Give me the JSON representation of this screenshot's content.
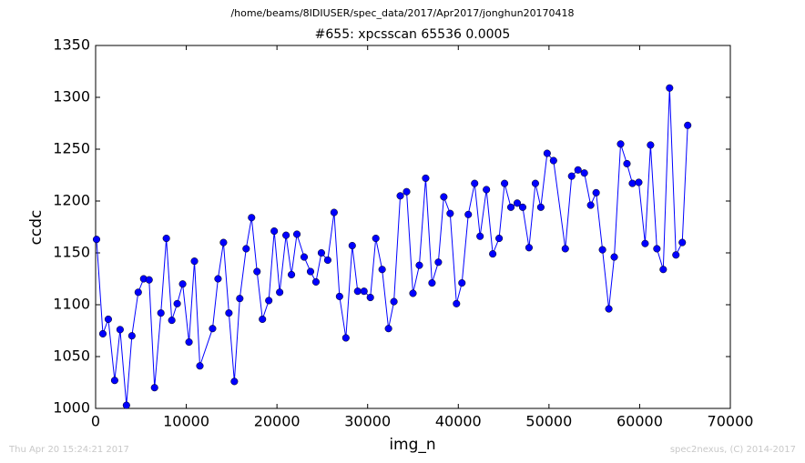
{
  "chart_data": {
    "type": "line",
    "suptitle": "/home/beams/8IDIUSER/spec_data/2017/Apr2017/jonghun20170418",
    "title": "#655: xpcsscan 65536 0.0005",
    "xlabel": "img_n",
    "ylabel": "ccdc",
    "footer_left": "Thu Apr 20 15:24:21 2017",
    "footer_right": "spec2nexus, (C) 2014-2017",
    "xlim": [
      0,
      70000
    ],
    "xticks": [
      0,
      10000,
      20000,
      30000,
      40000,
      50000,
      60000,
      70000
    ],
    "ylim": [
      1000,
      1350
    ],
    "yticks": [
      1000,
      1050,
      1100,
      1150,
      1200,
      1250,
      1300,
      1350
    ],
    "series": [
      {
        "color": "#0000ff",
        "x": [
          100,
          800,
          1400,
          2100,
          2700,
          3400,
          4000,
          4700,
          5300,
          5900,
          6500,
          7200,
          7800,
          8400,
          9000,
          9600,
          10300,
          10900,
          11500,
          12900,
          13500,
          14100,
          14700,
          15300,
          15900,
          16600,
          17200,
          17800,
          18400,
          19100,
          19700,
          20300,
          21000,
          21600,
          22200,
          23000,
          23700,
          24300,
          24900,
          25600,
          26300,
          26900,
          27600,
          28300,
          28900,
          29600,
          30300,
          30900,
          31600,
          32300,
          32900,
          33600,
          34300,
          35000,
          35700,
          36400,
          37100,
          37800,
          38400,
          39100,
          39800,
          40400,
          41100,
          41800,
          42400,
          43100,
          43800,
          44500,
          45100,
          45800,
          46500,
          47100,
          47800,
          48500,
          49100,
          49800,
          50500,
          51800,
          52500,
          53200,
          53900,
          54600,
          55200,
          55900,
          56600,
          57200,
          57900,
          58600,
          59200,
          59900,
          60600,
          61200,
          61900,
          62600,
          63300,
          64000,
          64700,
          65300
        ],
        "values": [
          1163,
          1072,
          1086,
          1027,
          1076,
          1003,
          1070,
          1112,
          1125,
          1124,
          1020,
          1092,
          1164,
          1085,
          1101,
          1120,
          1064,
          1142,
          1041,
          1077,
          1125,
          1160,
          1092,
          1026,
          1106,
          1154,
          1184,
          1132,
          1086,
          1104,
          1171,
          1112,
          1167,
          1129,
          1168,
          1146,
          1132,
          1122,
          1150,
          1143,
          1189,
          1108,
          1068,
          1157,
          1113,
          1113,
          1107,
          1164,
          1134,
          1077,
          1103,
          1205,
          1209,
          1111,
          1138,
          1222,
          1121,
          1141,
          1204,
          1188,
          1101,
          1121,
          1187,
          1217,
          1166,
          1211,
          1149,
          1164,
          1217,
          1194,
          1198,
          1194,
          1155,
          1217,
          1194,
          1246,
          1239,
          1154,
          1224,
          1230,
          1227,
          1196,
          1208,
          1153,
          1096,
          1146,
          1255,
          1236,
          1217,
          1218,
          1159,
          1254,
          1154,
          1134,
          1309,
          1148,
          1160,
          1273
        ]
      }
    ]
  }
}
